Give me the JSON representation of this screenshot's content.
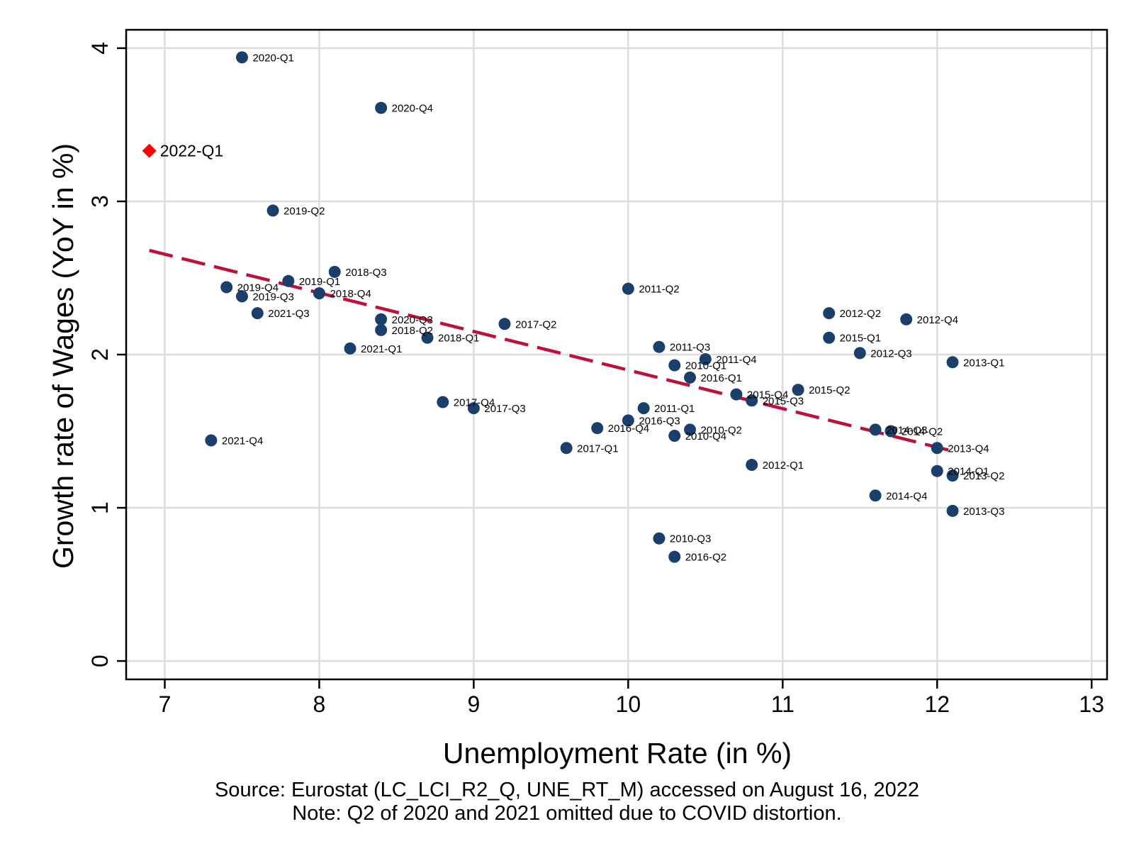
{
  "chart_data": {
    "type": "scatter",
    "xlabel": "Unemployment Rate (in %)",
    "ylabel": "Growth rate of Wages (YoY in %)",
    "xlim": [
      6.75,
      13.1
    ],
    "ylim": [
      -0.12,
      4.12
    ],
    "xticks": [
      7,
      8,
      9,
      10,
      11,
      12,
      13
    ],
    "yticks": [
      0,
      1,
      2,
      3,
      4
    ],
    "grid": true,
    "colors": {
      "points": "#1a3f6b",
      "highlight": "#ff0000",
      "fit": "#c0103a",
      "grid": "#dcdcdc"
    },
    "series": [
      {
        "marker": "circle",
        "points": [
          {
            "label": "2010-Q1",
            "x": 10.3,
            "y": 1.93
          },
          {
            "label": "2010-Q2",
            "x": 10.4,
            "y": 1.51
          },
          {
            "label": "2010-Q3",
            "x": 10.2,
            "y": 0.8
          },
          {
            "label": "2010-Q4",
            "x": 10.3,
            "y": 1.47
          },
          {
            "label": "2011-Q1",
            "x": 10.1,
            "y": 1.65
          },
          {
            "label": "2011-Q2",
            "x": 10.0,
            "y": 2.43
          },
          {
            "label": "2011-Q3",
            "x": 10.2,
            "y": 2.05
          },
          {
            "label": "2011-Q4",
            "x": 10.5,
            "y": 1.97
          },
          {
            "label": "2012-Q1",
            "x": 10.8,
            "y": 1.28
          },
          {
            "label": "2012-Q2",
            "x": 11.3,
            "y": 2.27
          },
          {
            "label": "2012-Q3",
            "x": 11.5,
            "y": 2.01
          },
          {
            "label": "2012-Q4",
            "x": 11.8,
            "y": 2.23
          },
          {
            "label": "2013-Q1",
            "x": 12.1,
            "y": 1.95
          },
          {
            "label": "2013-Q2",
            "x": 12.1,
            "y": 1.21
          },
          {
            "label": "2013-Q3",
            "x": 12.1,
            "y": 0.98
          },
          {
            "label": "2013-Q4",
            "x": 12.0,
            "y": 1.39
          },
          {
            "label": "2014-Q1",
            "x": 12.0,
            "y": 1.24
          },
          {
            "label": "2014-Q2",
            "x": 11.7,
            "y": 1.5
          },
          {
            "label": "2014-Q3",
            "x": 11.6,
            "y": 1.51
          },
          {
            "label": "2014-Q4",
            "x": 11.6,
            "y": 1.08
          },
          {
            "label": "2015-Q1",
            "x": 11.3,
            "y": 2.11
          },
          {
            "label": "2015-Q2",
            "x": 11.1,
            "y": 1.77
          },
          {
            "label": "2015-Q3",
            "x": 10.8,
            "y": 1.7
          },
          {
            "label": "2015-Q4",
            "x": 10.7,
            "y": 1.74
          },
          {
            "label": "2016-Q1",
            "x": 10.4,
            "y": 1.85
          },
          {
            "label": "2016-Q2",
            "x": 10.3,
            "y": 0.68
          },
          {
            "label": "2016-Q3",
            "x": 10.0,
            "y": 1.57
          },
          {
            "label": "2016-Q4",
            "x": 9.8,
            "y": 1.52
          },
          {
            "label": "2017-Q1",
            "x": 9.6,
            "y": 1.39
          },
          {
            "label": "2017-Q2",
            "x": 9.2,
            "y": 2.2
          },
          {
            "label": "2017-Q3",
            "x": 9.0,
            "y": 1.65
          },
          {
            "label": "2017-Q4",
            "x": 8.8,
            "y": 1.69
          },
          {
            "label": "2018-Q1",
            "x": 8.7,
            "y": 2.11
          },
          {
            "label": "2018-Q2",
            "x": 8.4,
            "y": 2.16
          },
          {
            "label": "2018-Q3",
            "x": 8.1,
            "y": 2.54
          },
          {
            "label": "2018-Q4",
            "x": 8.0,
            "y": 2.4
          },
          {
            "label": "2019-Q1",
            "x": 7.8,
            "y": 2.48
          },
          {
            "label": "2019-Q2",
            "x": 7.7,
            "y": 2.94
          },
          {
            "label": "2019-Q3",
            "x": 7.5,
            "y": 2.38
          },
          {
            "label": "2019-Q4",
            "x": 7.4,
            "y": 2.44
          },
          {
            "label": "2020-Q1",
            "x": 7.5,
            "y": 3.94
          },
          {
            "label": "2020-Q3",
            "x": 8.4,
            "y": 2.23
          },
          {
            "label": "2020-Q4",
            "x": 8.4,
            "y": 3.61
          },
          {
            "label": "2021-Q1",
            "x": 8.2,
            "y": 2.04
          },
          {
            "label": "2021-Q3",
            "x": 7.6,
            "y": 2.27
          },
          {
            "label": "2021-Q4",
            "x": 7.3,
            "y": 1.44
          }
        ]
      },
      {
        "marker": "diamond",
        "points": [
          {
            "label": "2022-Q1",
            "x": 6.9,
            "y": 3.33
          }
        ]
      }
    ],
    "fit_line": {
      "style": "dashed",
      "x": [
        6.9,
        12.1
      ],
      "y": [
        2.68,
        1.37
      ]
    },
    "notes": [
      "Source: Eurostat (LC_LCI_R2_Q, UNE_RT_M) accessed on August 16, 2022",
      "Note: Q2 of 2020 and 2021 omitted due to COVID distortion."
    ]
  }
}
